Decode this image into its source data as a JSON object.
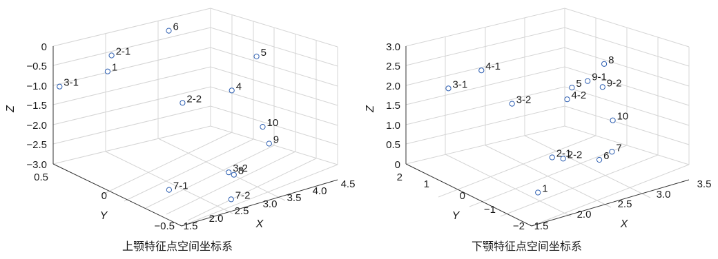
{
  "chart_data": [
    {
      "type": "scatter",
      "subtitle": "上颚特征点空间坐标系",
      "xlabel": "X",
      "ylabel": "Y",
      "zlabel": "Z",
      "x_ticks": [
        "1.5",
        "2.0",
        "2.5",
        "3.0",
        "3.5",
        "4.0",
        "4.5"
      ],
      "y_ticks": [
        "0.5",
        "0",
        "−0.5"
      ],
      "z_ticks": [
        "0",
        "−0.5",
        "−1.0",
        "−1.5",
        "−2.0",
        "−2.5",
        "−3.0"
      ],
      "xlim": [
        1.5,
        4.5
      ],
      "ylim": [
        -0.5,
        0.5
      ],
      "zlim": [
        -3.0,
        0
      ],
      "grid": true,
      "points": [
        {
          "label": "3-1",
          "x": 1.5,
          "y": 0.45,
          "z": -0.95
        },
        {
          "label": "1",
          "x": 2.3,
          "y": 0.4,
          "z": -0.8
        },
        {
          "label": "2-1",
          "x": 2.5,
          "y": 0.45,
          "z": -0.55
        },
        {
          "label": "6",
          "x": 3.6,
          "y": 0.45,
          "z": -0.35
        },
        {
          "label": "2-2",
          "x": 3.0,
          "y": 0.1,
          "z": -1.4
        },
        {
          "label": "5",
          "x": 4.3,
          "y": 0.05,
          "z": -0.65
        },
        {
          "label": "4",
          "x": 3.7,
          "y": 0.0,
          "z": -1.2
        },
        {
          "label": "10",
          "x": 3.8,
          "y": -0.2,
          "z": -1.85
        },
        {
          "label": "9",
          "x": 3.8,
          "y": -0.25,
          "z": -2.2
        },
        {
          "label": "7-1",
          "x": 2.0,
          "y": -0.2,
          "z": -2.75
        },
        {
          "label": "3-2",
          "x": 2.9,
          "y": -0.3,
          "z": -2.5
        },
        {
          "label": "8",
          "x": 3.0,
          "y": -0.3,
          "z": -2.6
        },
        {
          "label": "7-2",
          "x": 2.7,
          "y": -0.4,
          "z": -2.95
        }
      ]
    },
    {
      "type": "scatter",
      "subtitle": "下颚特征点空间坐标系",
      "xlabel": "X",
      "ylabel": "Y",
      "zlabel": "Z",
      "x_ticks": [
        "1.5",
        "2.0",
        "2.5",
        "3.0",
        "3.5"
      ],
      "y_ticks": [
        "2",
        "1",
        "0",
        "−1",
        "−2"
      ],
      "z_ticks": [
        "3.0",
        "2.5",
        "2.0",
        "1.5",
        "1.0",
        "0.5",
        "0"
      ],
      "xlim": [
        1.5,
        3.5
      ],
      "ylim": [
        -2,
        2
      ],
      "zlim": [
        0,
        3.0
      ],
      "grid": true,
      "points": [
        {
          "label": "4-1",
          "x": 1.9,
          "y": 0.6,
          "z": 2.7
        },
        {
          "label": "3-1",
          "x": 1.6,
          "y": 0.9,
          "z": 2.3
        },
        {
          "label": "3-2",
          "x": 2.05,
          "y": 0.0,
          "z": 2.0
        },
        {
          "label": "8",
          "x": 3.3,
          "y": 0.2,
          "z": 2.2
        },
        {
          "label": "5",
          "x": 2.85,
          "y": 0.1,
          "z": 1.9
        },
        {
          "label": "9-1",
          "x": 3.05,
          "y": 0.1,
          "z": 1.95
        },
        {
          "label": "9-2",
          "x": 3.2,
          "y": 0.0,
          "z": 1.75
        },
        {
          "label": "4-2",
          "x": 2.75,
          "y": 0.0,
          "z": 1.7
        },
        {
          "label": "10",
          "x": 3.25,
          "y": -0.2,
          "z": 0.95
        },
        {
          "label": "2-1",
          "x": 2.2,
          "y": -0.9,
          "z": 0.9
        },
        {
          "label": "2-2",
          "x": 2.3,
          "y": -1.0,
          "z": 0.85
        },
        {
          "label": "6",
          "x": 2.6,
          "y": -1.4,
          "z": 0.8
        },
        {
          "label": "7",
          "x": 2.8,
          "y": -1.3,
          "z": 0.85
        },
        {
          "label": "1",
          "x": 1.9,
          "y": -1.2,
          "z": 0.3
        }
      ]
    }
  ]
}
